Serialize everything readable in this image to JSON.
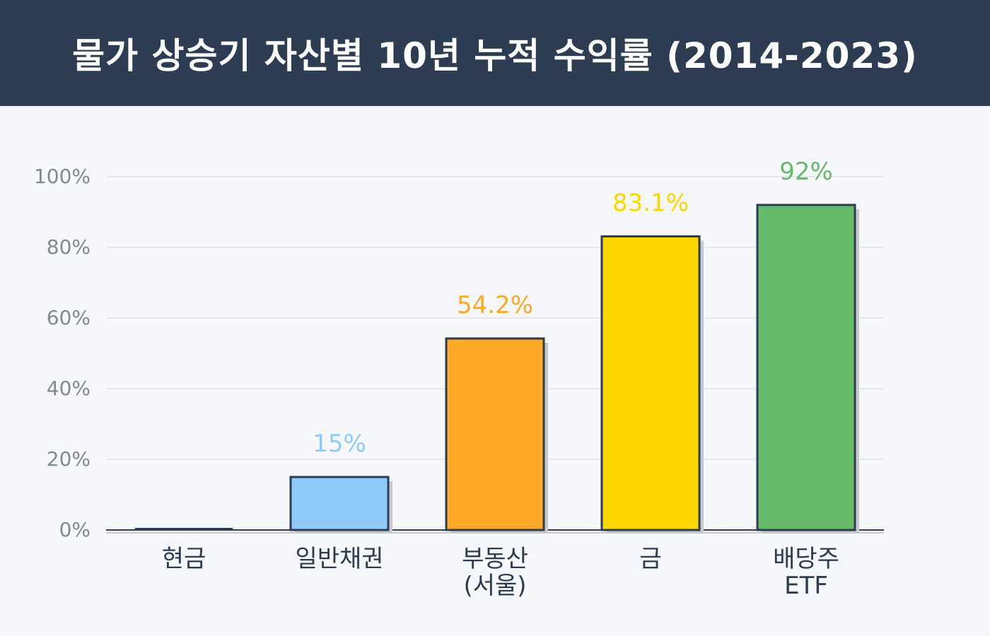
{
  "title": "물가 상승기 자산별 10년 누적 수익률 (2014-2023)",
  "colors": {
    "header_bg": "#2d3c50",
    "background": "#f5f7fa",
    "bar_outline": "#2d3c50",
    "bar_shadow": "#c7cbd1",
    "grid": "#e6e9ed",
    "tick_label": "#7f8c8d",
    "category_label": "#2d3c50"
  },
  "chart_data": {
    "type": "bar",
    "categories": [
      [
        "현금"
      ],
      [
        "일반채권"
      ],
      [
        "부동산",
        "(서울)"
      ],
      [
        "금"
      ],
      [
        "배당주",
        "ETF"
      ]
    ],
    "values": [
      0,
      15,
      54.2,
      83.1,
      92
    ],
    "value_labels": [
      "",
      "15%",
      "54.2%",
      "83.1%",
      "92%"
    ],
    "bar_colors": [
      "#2d3c50",
      "#90caf9",
      "#ffa726",
      "#ffd600",
      "#66bb6a"
    ],
    "label_colors": [
      "#2d3c50",
      "#90caf9",
      "#ffa726",
      "#ffd600",
      "#66bb6a"
    ],
    "yticks": [
      0,
      20,
      40,
      60,
      80,
      100
    ],
    "ytick_labels": [
      "0%",
      "20%",
      "40%",
      "60%",
      "80%",
      "100%"
    ],
    "ylim": [
      0,
      100
    ],
    "grid": true,
    "legend": "none"
  }
}
